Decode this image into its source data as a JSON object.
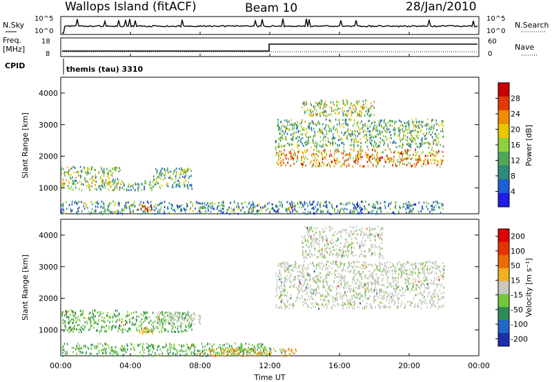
{
  "header": {
    "site_title": "Wallops Island (fitACF)",
    "beam": "Beam 10",
    "date": "28/Jan/2010"
  },
  "top_panels": {
    "nsky_label": "N.Sky",
    "nsky_ticks": [
      "10^5",
      "10^0"
    ],
    "nsearch_label": "N.Search",
    "nsearch_ticks": [
      "10^5",
      "10^0"
    ],
    "freq_label_line1": "Freq.",
    "freq_label_line2": "[MHz]",
    "freq_ticks": [
      "18",
      "8"
    ],
    "nave_label": "Nave",
    "nave_ticks": [
      "60",
      "0"
    ],
    "cpid_label": "CPID",
    "cpid_value": "themis (tau) 3310"
  },
  "chart_data": [
    {
      "type": "heatmap",
      "name": "power",
      "ylabel": "Slant Range [km]",
      "ylim": [
        180,
        4500
      ],
      "yticks": [
        "1000",
        "2000",
        "3000",
        "4000"
      ],
      "xlim": [
        "00:00",
        "24:00"
      ],
      "colorbar": {
        "label": "Power [dB]",
        "range": [
          0,
          30
        ],
        "tick_labels": [
          "4",
          "8",
          "12",
          "16",
          "20",
          "24",
          "28"
        ],
        "colors": [
          "#1d1de6",
          "#1f5fd6",
          "#2e8b7a",
          "#4fa85a",
          "#8fd13a",
          "#e8c800",
          "#f08c00",
          "#e23a00",
          "#cc0000"
        ]
      },
      "regions": [
        {
          "t_start": 0.0,
          "t_end": 3.5,
          "r_min": 950,
          "r_max": 1700,
          "intensity": 0.45
        },
        {
          "t_start": 3.5,
          "t_end": 5.3,
          "r_min": 950,
          "r_max": 1250,
          "intensity": 0.35
        },
        {
          "t_start": 5.3,
          "t_end": 7.5,
          "r_min": 1000,
          "r_max": 1650,
          "intensity": 0.35
        },
        {
          "t_start": 0.0,
          "t_end": 12.0,
          "r_min": 200,
          "r_max": 600,
          "intensity": 0.3
        },
        {
          "t_start": 4.5,
          "t_end": 5.3,
          "r_min": 300,
          "r_max": 500,
          "intensity": 0.9
        },
        {
          "t_start": 13.0,
          "t_end": 13.6,
          "r_min": 300,
          "r_max": 500,
          "intensity": 0.85
        },
        {
          "t_start": 12.3,
          "t_end": 22.0,
          "r_min": 1700,
          "r_max": 2250,
          "intensity": 0.7
        },
        {
          "t_start": 12.3,
          "t_end": 22.0,
          "r_min": 2300,
          "r_max": 3200,
          "intensity": 0.4
        },
        {
          "t_start": 13.8,
          "t_end": 18.0,
          "r_min": 3300,
          "r_max": 3800,
          "intensity": 0.5
        },
        {
          "t_start": 12.0,
          "t_end": 22.0,
          "r_min": 200,
          "r_max": 600,
          "intensity": 0.25
        }
      ]
    },
    {
      "type": "heatmap",
      "name": "velocity",
      "ylabel": "Slant Range [km]",
      "ylim": [
        180,
        4500
      ],
      "yticks": [
        "1000",
        "2000",
        "3000",
        "4000"
      ],
      "xlabel": "Time UT",
      "xticks": [
        "00:00",
        "04:00",
        "08:00",
        "12:00",
        "16:00",
        "20:00",
        "00:00"
      ],
      "xlim": [
        "00:00",
        "24:00"
      ],
      "colorbar": {
        "label": "Velocity [m s⁻¹]",
        "tick_labels": [
          "200",
          "100",
          "50",
          "15",
          "-15",
          "-50",
          "-100",
          "-200"
        ],
        "colors": [
          "#1a2fa8",
          "#2166c8",
          "#2e8b57",
          "#72c83a",
          "#c8c8c0",
          "#f0b020",
          "#ef6a00",
          "#e63300",
          "#e00000"
        ]
      },
      "regions": [
        {
          "t_start": 0.0,
          "t_end": 3.5,
          "r_min": 950,
          "r_max": 1650,
          "class": "green"
        },
        {
          "t_start": 3.5,
          "t_end": 7.5,
          "r_min": 950,
          "r_max": 1600,
          "class": "green"
        },
        {
          "t_start": 4.5,
          "t_end": 5.3,
          "r_min": 900,
          "r_max": 1100,
          "class": "orange"
        },
        {
          "t_start": 5.5,
          "t_end": 8.0,
          "r_min": 1200,
          "r_max": 1600,
          "class": "grey"
        },
        {
          "t_start": 0.0,
          "t_end": 12.0,
          "r_min": 200,
          "r_max": 600,
          "class": "green"
        },
        {
          "t_start": 8.0,
          "t_end": 13.5,
          "r_min": 200,
          "r_max": 450,
          "class": "orange"
        },
        {
          "t_start": 12.3,
          "t_end": 22.0,
          "r_min": 1700,
          "r_max": 3200,
          "class": "grey"
        },
        {
          "t_start": 13.8,
          "t_end": 18.5,
          "r_min": 3300,
          "r_max": 4300,
          "class": "grey"
        }
      ]
    }
  ]
}
